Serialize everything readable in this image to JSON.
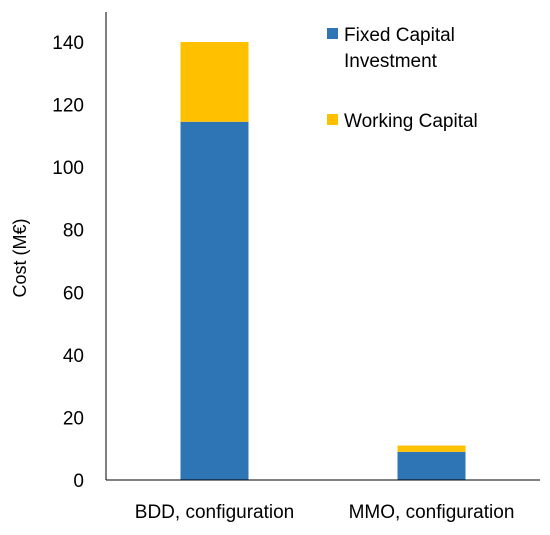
{
  "chart_data": {
    "type": "bar",
    "stacked": true,
    "ylabel": "Cost (M€)",
    "xlabel": "",
    "ylim": [
      0,
      140
    ],
    "yticks": [
      0,
      20,
      40,
      60,
      80,
      100,
      120,
      140
    ],
    "grid": false,
    "categories": [
      "BDD, configuration",
      "MMO, configuration"
    ],
    "series": [
      {
        "name": "Fixed Capital Investment",
        "values": [
          114.5,
          9
        ],
        "color": "#2E75B6"
      },
      {
        "name": "Working Capital",
        "values": [
          25.5,
          2
        ],
        "color": "#FFC000"
      }
    ],
    "legend": {
      "placement": "top-right",
      "entries": [
        {
          "lines": [
            "Fixed Capital",
            "Investment"
          ],
          "color": "#2E75B6"
        },
        {
          "lines": [
            "Working Capital"
          ],
          "color": "#FFC000"
        }
      ]
    }
  }
}
